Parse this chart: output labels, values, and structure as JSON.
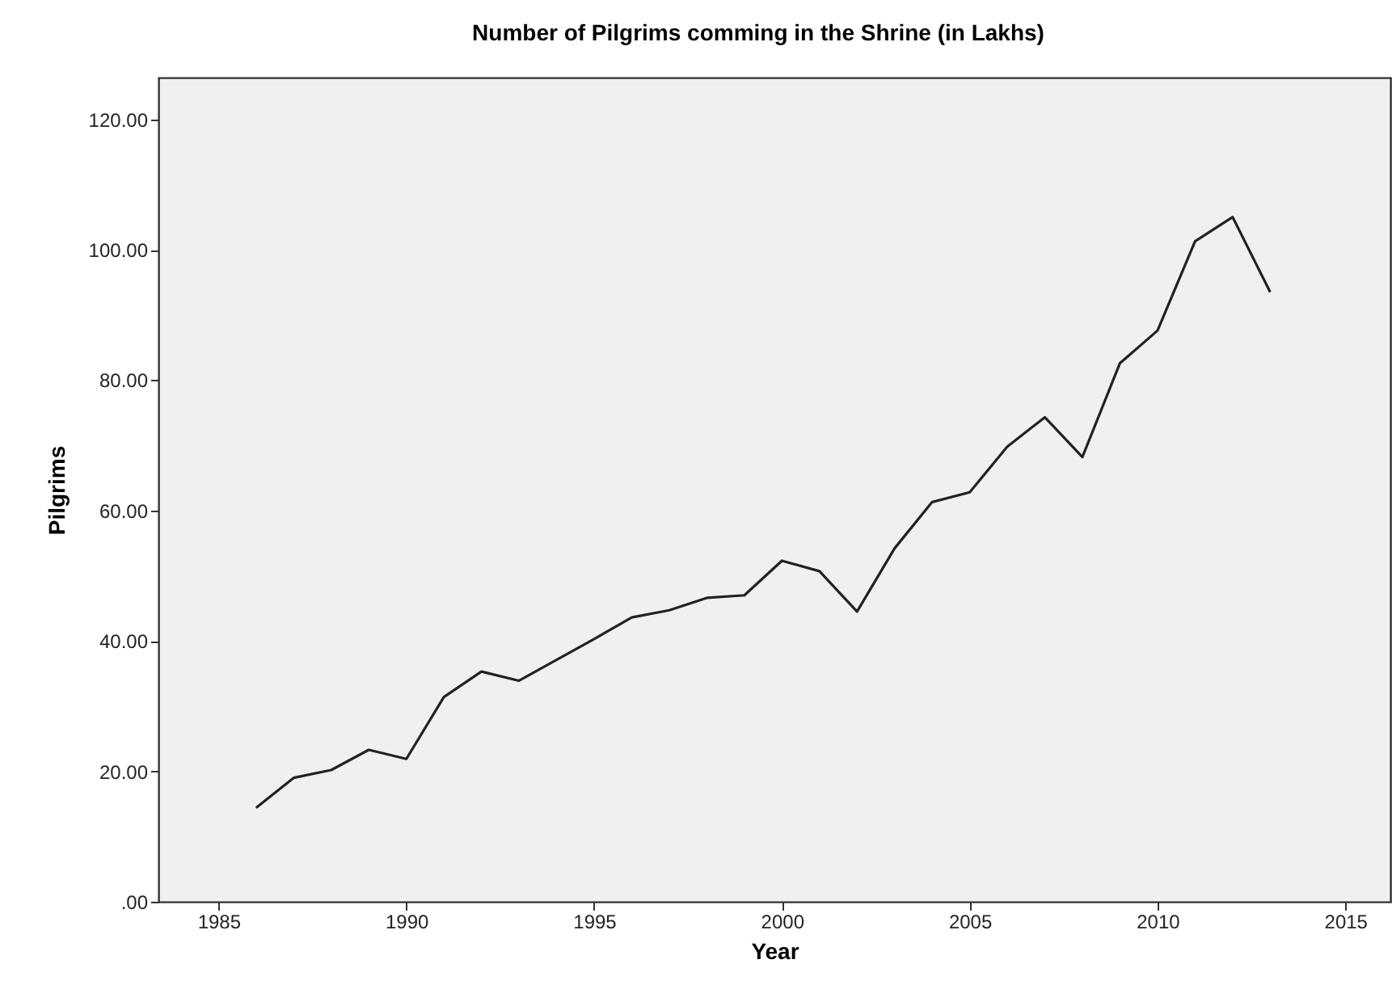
{
  "chart_data": {
    "type": "line",
    "title": "Number of Pilgrims comming in the Shrine (in Lakhs)",
    "xlabel": "Year",
    "ylabel": "Pilgrims",
    "x": [
      1986,
      1987,
      1988,
      1989,
      1990,
      1991,
      1992,
      1993,
      1994,
      1995,
      1996,
      1997,
      1998,
      1999,
      2000,
      2001,
      2002,
      2003,
      2004,
      2005,
      2006,
      2007,
      2008,
      2009,
      2010,
      2011,
      2012,
      2013
    ],
    "series": [
      {
        "color": "#222222",
        "values": [
          14.4,
          19.0,
          20.2,
          23.3,
          21.9,
          31.4,
          35.3,
          33.9,
          37.1,
          40.3,
          43.6,
          44.7,
          46.6,
          47.0,
          52.3,
          50.7,
          44.5,
          54.2,
          61.3,
          62.8,
          69.8,
          74.3,
          68.2,
          82.6,
          87.6,
          101.3,
          105.0,
          93.5
        ]
      }
    ],
    "xlim": [
      1983.4,
      2016.2
    ],
    "xticks": [
      1985,
      1990,
      1995,
      2000,
      2005,
      2010,
      2015
    ],
    "ylim": [
      0,
      126.4
    ],
    "yticks": [
      {
        "value": 0,
        "label": ".00"
      },
      {
        "value": 20,
        "label": "20.00"
      },
      {
        "value": 40,
        "label": "40.00"
      },
      {
        "value": 60,
        "label": "60.00"
      },
      {
        "value": 80,
        "label": "80.00"
      },
      {
        "value": 100,
        "label": "100.00"
      },
      {
        "value": 120,
        "label": "120.00"
      }
    ],
    "grid": false,
    "legend": false,
    "marker": "none",
    "line_style": "solid"
  }
}
